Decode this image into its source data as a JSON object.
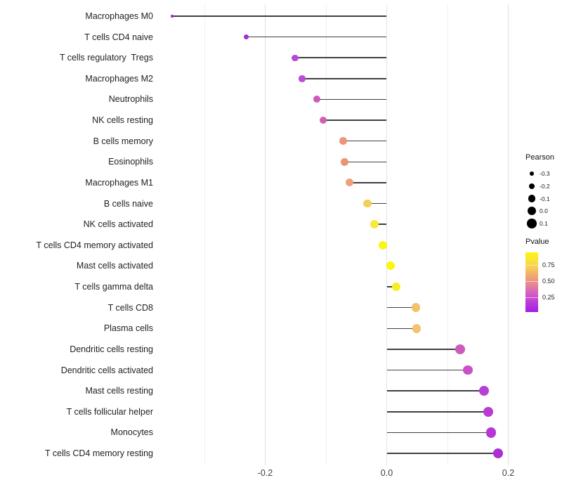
{
  "chart_data": {
    "type": "lollipop",
    "orientation": "horizontal",
    "title": "",
    "xlabel": "",
    "ylabel": "",
    "grid": "on",
    "x_axis": {
      "tick_labels": [
        "-0.2",
        "0.0",
        "0.2"
      ],
      "tick_values": [
        -0.2,
        0.0,
        0.2
      ],
      "gridlines_major": [
        -0.2,
        0.0,
        0.2
      ],
      "gridlines_minor": [
        -0.3,
        -0.1,
        0.1
      ],
      "range": [
        -0.38,
        0.22
      ]
    },
    "rows": [
      {
        "label": "Macrophages M0",
        "pearson": -0.353,
        "color": "#9c22d8"
      },
      {
        "label": "T cells CD4 naive",
        "pearson": -0.231,
        "color": "#a62bd3"
      },
      {
        "label": "T cells regulatory  Tregs",
        "pearson": -0.151,
        "color": "#b44bd6"
      },
      {
        "label": "Macrophages M2",
        "pearson": -0.139,
        "color": "#bb4bd8"
      },
      {
        "label": "Neutrophils",
        "pearson": -0.115,
        "color": "#ce58bc"
      },
      {
        "label": "NK cells resting",
        "pearson": -0.105,
        "color": "#d05fb4"
      },
      {
        "label": "B cells memory",
        "pearson": -0.072,
        "color": "#ec9579"
      },
      {
        "label": "Eosinophils",
        "pearson": -0.069,
        "color": "#ec9375"
      },
      {
        "label": "Macrophages M1",
        "pearson": -0.061,
        "color": "#eca07e"
      },
      {
        "label": "B cells naive",
        "pearson": -0.032,
        "color": "#f2cf55"
      },
      {
        "label": "NK cells activated",
        "pearson": -0.02,
        "color": "#f8e93b"
      },
      {
        "label": "T cells CD4 memory activated",
        "pearson": -0.006,
        "color": "#fbf60d"
      },
      {
        "label": "Mast cells activated",
        "pearson": 0.006,
        "color": "#fbf60d"
      },
      {
        "label": "T cells gamma delta",
        "pearson": 0.016,
        "color": "#f8ee20"
      },
      {
        "label": "T cells CD8",
        "pearson": 0.048,
        "color": "#f2c26e"
      },
      {
        "label": "Plasma cells",
        "pearson": 0.049,
        "color": "#f2c26e"
      },
      {
        "label": "Dendritic cells resting",
        "pearson": 0.121,
        "color": "#cc5bbe"
      },
      {
        "label": "Dendritic cells activated",
        "pearson": 0.134,
        "color": "#c851c8"
      },
      {
        "label": "Mast cells resting",
        "pearson": 0.16,
        "color": "#b73fd3"
      },
      {
        "label": "T cells follicular helper",
        "pearson": 0.167,
        "color": "#b73bd4"
      },
      {
        "label": "Monocytes",
        "pearson": 0.172,
        "color": "#b637d6"
      },
      {
        "label": "T cells CD4 memory resting",
        "pearson": 0.183,
        "color": "#ac2fd4"
      }
    ],
    "legend_size": {
      "title": "Pearson",
      "entries": [
        {
          "label": "-0.3",
          "value": -0.3
        },
        {
          "label": "-0.2",
          "value": -0.2
        },
        {
          "label": "-0.1",
          "value": -0.1
        },
        {
          "label": "0.0",
          "value": 0.0
        },
        {
          "label": "0.1",
          "value": 0.1
        }
      ]
    },
    "legend_color": {
      "title": "Pvalue",
      "tick_labels": [
        "0.75",
        "0.50",
        "0.25"
      ],
      "tick_values": [
        0.75,
        0.5,
        0.25
      ],
      "gradient_top_to_bottom": [
        "#fbf515",
        "#f9e238",
        "#f5c55c",
        "#ef9f78",
        "#e27e9e",
        "#d058c6",
        "#b637d8",
        "#a41ee3"
      ]
    }
  }
}
